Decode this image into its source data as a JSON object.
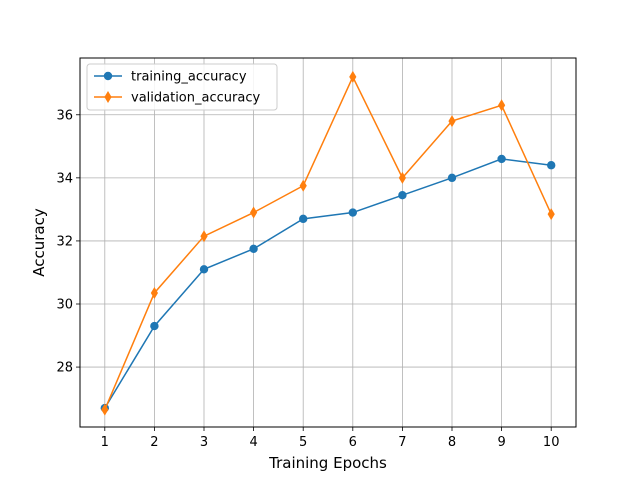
{
  "chart_data": {
    "type": "line",
    "title": "",
    "xlabel": "Training Epochs",
    "ylabel": "Accuracy",
    "x": [
      1,
      2,
      3,
      4,
      5,
      6,
      7,
      8,
      9,
      10
    ],
    "xticks": [
      "1",
      "2",
      "3",
      "4",
      "5",
      "6",
      "7",
      "8",
      "9",
      "10"
    ],
    "xlim": [
      0.5,
      10.5
    ],
    "yticks": [
      "28",
      "30",
      "32",
      "34",
      "36"
    ],
    "ylim": [
      26.1,
      37.8
    ],
    "grid": true,
    "legend_position": "top-left",
    "series": [
      {
        "name": "training_accuracy",
        "color": "#1f77b4",
        "marker": "circle",
        "values": [
          26.7,
          29.3,
          31.1,
          31.75,
          32.7,
          32.9,
          33.45,
          34.0,
          34.6,
          34.4
        ]
      },
      {
        "name": "validation_accuracy",
        "color": "#ff7f0e",
        "marker": "thin-diamond",
        "values": [
          26.65,
          30.35,
          32.15,
          32.9,
          33.75,
          37.2,
          34.0,
          35.8,
          36.3,
          32.85
        ]
      }
    ]
  }
}
